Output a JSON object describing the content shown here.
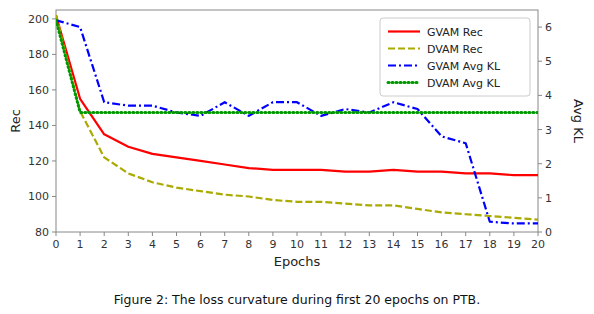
{
  "chart_data": {
    "type": "line",
    "title": "Figure 2: The loss curvature during first 20 epochs on PTB.",
    "xlabel": "Epochs",
    "ylabel": "Rec",
    "y2label": "Avg KL",
    "x": [
      0,
      1,
      2,
      3,
      4,
      5,
      6,
      7,
      8,
      9,
      10,
      11,
      12,
      13,
      14,
      15,
      16,
      17,
      18,
      19,
      20
    ],
    "xlim": [
      0,
      20
    ],
    "xticks": [
      0,
      1,
      2,
      3,
      4,
      5,
      6,
      7,
      8,
      9,
      10,
      11,
      12,
      13,
      14,
      15,
      16,
      17,
      18,
      19,
      20
    ],
    "ylim": [
      80,
      205
    ],
    "yticks": [
      80,
      100,
      120,
      140,
      160,
      180,
      200
    ],
    "y2lim": [
      0,
      6.5
    ],
    "y2ticks": [
      0,
      1,
      2,
      3,
      4,
      5,
      6
    ],
    "grid": false,
    "legend": "upper right",
    "series": [
      {
        "name": "GVAM Rec",
        "color": "#ff0000",
        "line_style": "solid",
        "values": [
          202,
          155,
          135,
          128,
          124,
          122,
          120,
          118,
          116,
          115,
          115,
          115,
          114,
          114,
          115,
          114,
          114,
          113,
          113,
          112,
          112
        ]
      },
      {
        "name": "DVAM Rec",
        "color": "#aaaa00",
        "line_style": "dashed",
        "values": [
          202,
          148,
          122,
          113,
          108,
          105,
          103,
          101,
          100,
          98,
          97,
          97,
          96,
          95,
          95,
          93,
          91,
          90,
          89,
          88,
          87
        ]
      },
      {
        "name": "GVAM Avg KL",
        "color": "#0000ff",
        "line_style": "dashdot",
        "axis": "y2",
        "values": [
          6.2,
          6.0,
          3.8,
          3.7,
          3.7,
          3.5,
          3.4,
          3.8,
          3.4,
          3.8,
          3.8,
          3.4,
          3.6,
          3.5,
          3.8,
          3.6,
          2.8,
          2.6,
          0.3,
          0.25,
          0.25
        ]
      },
      {
        "name": "DVAM Avg KL",
        "color": "#009900",
        "line_style": "dotted",
        "axis": "y2",
        "values": [
          6.2,
          3.5,
          3.5,
          3.5,
          3.5,
          3.5,
          3.5,
          3.5,
          3.5,
          3.5,
          3.5,
          3.5,
          3.5,
          3.5,
          3.5,
          3.5,
          3.5,
          3.5,
          3.5,
          3.5,
          3.5
        ]
      }
    ]
  }
}
